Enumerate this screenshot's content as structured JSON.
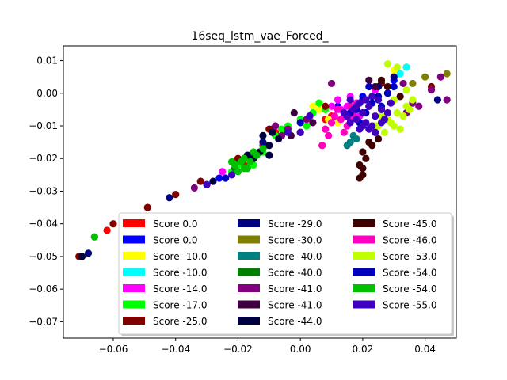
{
  "chart_data": {
    "type": "scatter",
    "title": "16seq_lstm_vae_Forced_",
    "xlabel": "",
    "ylabel": "",
    "xlim": [
      -0.076,
      0.05
    ],
    "ylim": [
      -0.075,
      0.0145
    ],
    "xticks": [
      -0.06,
      -0.04,
      -0.02,
      0.0,
      0.02,
      0.04
    ],
    "xtick_labels": [
      "−0.06",
      "−0.04",
      "−0.02",
      "0.00",
      "0.02",
      "0.04"
    ],
    "yticks": [
      0.01,
      0.0,
      -0.01,
      -0.02,
      -0.03,
      -0.04,
      -0.05,
      -0.06,
      -0.07
    ],
    "ytick_labels": [
      "0.01",
      "0.00",
      "−0.01",
      "−0.02",
      "−0.03",
      "−0.04",
      "−0.05",
      "−0.06",
      "−0.07"
    ],
    "grid": false,
    "legend_position": "lower-right",
    "legend_columns": 3,
    "series": [
      {
        "name": "Score 0.0",
        "color": "#ff0000",
        "points": [
          [
            -0.018,
            -0.022
          ],
          [
            -0.012,
            -0.016
          ],
          [
            0.008,
            -0.008
          ],
          [
            -0.062,
            -0.042
          ],
          [
            0.01,
            -0.007
          ],
          [
            -0.008,
            -0.012
          ]
        ]
      },
      {
        "name": "Score 0.0",
        "color": "#0000ff",
        "points": [
          [
            -0.016,
            -0.019
          ],
          [
            0.012,
            -0.004
          ],
          [
            -0.026,
            -0.026
          ],
          [
            0.03,
            0.004
          ],
          [
            -0.009,
            -0.011
          ],
          [
            0.02,
            -0.001
          ]
        ]
      },
      {
        "name": "Score -10.0",
        "color": "#ffff00",
        "points": [
          [
            0.006,
            -0.005
          ],
          [
            0.009,
            -0.008
          ],
          [
            0.004,
            -0.004
          ],
          [
            0.012,
            -0.009
          ],
          [
            0.03,
            0.007
          ],
          [
            0.034,
            0.008
          ]
        ]
      },
      {
        "name": "Score -10.0",
        "color": "#00ffff",
        "points": [
          [
            0.034,
            0.008
          ],
          [
            0.032,
            0.006
          ],
          [
            0.028,
            0.0
          ]
        ]
      },
      {
        "name": "Score -14.0",
        "color": "#ff00ff",
        "points": [
          [
            0.012,
            -0.002
          ],
          [
            0.015,
            -0.004
          ],
          [
            0.014,
            -0.007
          ],
          [
            0.018,
            -0.003
          ],
          [
            0.016,
            -0.008
          ],
          [
            0.02,
            -0.002
          ],
          [
            0.013,
            -0.005
          ],
          [
            0.017,
            -0.006
          ],
          [
            0.01,
            -0.004
          ],
          [
            0.019,
            -0.007
          ],
          [
            0.022,
            -0.004
          ],
          [
            0.007,
            -0.016
          ],
          [
            -0.025,
            -0.024
          ],
          [
            -0.018,
            -0.02
          ],
          [
            0.024,
            0.001
          ],
          [
            0.016,
            -0.001
          ]
        ]
      },
      {
        "name": "Score -17.0",
        "color": "#00ff00",
        "points": [
          [
            -0.02,
            -0.022
          ],
          [
            -0.017,
            -0.02
          ],
          [
            -0.014,
            -0.019
          ],
          [
            -0.011,
            -0.016
          ],
          [
            -0.008,
            -0.013
          ],
          [
            -0.004,
            -0.01
          ],
          [
            0.0,
            -0.008
          ],
          [
            0.004,
            -0.006
          ],
          [
            -0.022,
            -0.024
          ],
          [
            -0.015,
            -0.022
          ],
          [
            -0.012,
            -0.018
          ],
          [
            0.002,
            -0.01
          ],
          [
            0.006,
            -0.003
          ],
          [
            -0.066,
            -0.044
          ],
          [
            -0.006,
            -0.011
          ],
          [
            0.008,
            -0.005
          ]
        ]
      },
      {
        "name": "Score -25.0",
        "color": "#800000",
        "points": [
          [
            -0.071,
            -0.05
          ],
          [
            -0.049,
            -0.035
          ],
          [
            -0.04,
            -0.031
          ],
          [
            -0.032,
            -0.027
          ],
          [
            -0.01,
            -0.011
          ],
          [
            0.008,
            -0.004
          ],
          [
            0.026,
            0.003
          ],
          [
            0.042,
            0.002
          ],
          [
            -0.02,
            -0.02
          ],
          [
            -0.06,
            -0.04
          ]
        ]
      },
      {
        "name": "Score -29.0",
        "color": "#000080",
        "points": [
          [
            -0.068,
            -0.049
          ],
          [
            -0.03,
            -0.028
          ],
          [
            -0.012,
            -0.015
          ],
          [
            0.003,
            -0.007
          ],
          [
            0.03,
            0.005
          ],
          [
            0.044,
            -0.002
          ],
          [
            -0.042,
            -0.032
          ],
          [
            0.025,
            0.002
          ]
        ]
      },
      {
        "name": "Score -30.0",
        "color": "#808000",
        "points": [
          [
            0.047,
            0.006
          ],
          [
            0.04,
            0.005
          ],
          [
            0.036,
            0.003
          ]
        ]
      },
      {
        "name": "Score -40.0",
        "color": "#008080",
        "points": [
          [
            0.016,
            -0.015
          ],
          [
            0.015,
            -0.016
          ],
          [
            0.018,
            -0.014
          ],
          [
            0.017,
            -0.013
          ]
        ]
      },
      {
        "name": "Score -40.0",
        "color": "#008000",
        "points": [
          [
            -0.019,
            -0.021
          ],
          [
            -0.016,
            -0.019
          ],
          [
            -0.021,
            -0.023
          ],
          [
            -0.013,
            -0.018
          ],
          [
            -0.017,
            -0.023
          ],
          [
            -0.015,
            -0.02
          ]
        ]
      },
      {
        "name": "Score -41.0",
        "color": "#800080",
        "points": [
          [
            -0.006,
            -0.013
          ],
          [
            -0.008,
            -0.01
          ],
          [
            0.0,
            -0.012
          ],
          [
            0.045,
            0.005
          ],
          [
            0.047,
            -0.002
          ],
          [
            0.038,
            -0.004
          ],
          [
            0.034,
            -0.006
          ],
          [
            0.033,
            0.003
          ],
          [
            -0.004,
            -0.011
          ],
          [
            -0.034,
            -0.029
          ],
          [
            0.01,
            0.003
          ],
          [
            0.002,
            -0.008
          ],
          [
            0.036,
            -0.003
          ],
          [
            0.042,
            0.001
          ]
        ]
      },
      {
        "name": "Score -41.0",
        "color": "#400040",
        "points": [
          [
            0.004,
            -0.009
          ],
          [
            -0.003,
            -0.013
          ],
          [
            0.022,
            0.004
          ],
          [
            -0.002,
            -0.006
          ],
          [
            0.024,
            0.002
          ]
        ]
      },
      {
        "name": "Score -44.0",
        "color": "#000040",
        "points": [
          [
            -0.015,
            -0.02
          ],
          [
            -0.013,
            -0.018
          ],
          [
            -0.01,
            -0.016
          ],
          [
            -0.007,
            -0.014
          ],
          [
            -0.01,
            -0.019
          ],
          [
            -0.012,
            -0.013
          ],
          [
            -0.07,
            -0.05
          ],
          [
            -0.028,
            -0.027
          ],
          [
            -0.009,
            -0.012
          ],
          [
            -0.017,
            -0.019
          ]
        ]
      },
      {
        "name": "Score -45.0",
        "color": "#400000",
        "points": [
          [
            0.022,
            -0.015
          ],
          [
            0.02,
            -0.018
          ],
          [
            0.019,
            -0.022
          ],
          [
            0.02,
            -0.025
          ],
          [
            0.024,
            -0.012
          ],
          [
            0.025,
            -0.014
          ],
          [
            0.021,
            -0.02
          ],
          [
            0.019,
            -0.026
          ],
          [
            0.023,
            -0.016
          ],
          [
            0.02,
            -0.023
          ],
          [
            0.026,
            0.004
          ],
          [
            0.028,
            0.002
          ],
          [
            0.032,
            -0.001
          ]
        ]
      },
      {
        "name": "Score -46.0",
        "color": "#ff00c0",
        "points": [
          [
            0.012,
            -0.005
          ],
          [
            0.014,
            -0.006
          ],
          [
            0.011,
            -0.007
          ],
          [
            0.016,
            -0.004
          ],
          [
            0.013,
            -0.008
          ],
          [
            0.015,
            -0.01
          ],
          [
            0.017,
            -0.007
          ],
          [
            0.01,
            -0.009
          ],
          [
            0.008,
            -0.011
          ],
          [
            0.018,
            -0.003
          ],
          [
            0.009,
            -0.013
          ],
          [
            0.014,
            -0.012
          ],
          [
            0.007,
            -0.016
          ]
        ]
      },
      {
        "name": "Score -53.0",
        "color": "#c0ff00",
        "points": [
          [
            0.025,
            -0.01
          ],
          [
            0.028,
            -0.008
          ],
          [
            0.031,
            -0.006
          ],
          [
            0.034,
            -0.004
          ],
          [
            0.03,
            -0.01
          ],
          [
            0.027,
            -0.012
          ],
          [
            0.033,
            -0.007
          ],
          [
            0.036,
            -0.002
          ],
          [
            0.029,
            -0.009
          ],
          [
            0.032,
            -0.011
          ],
          [
            0.024,
            -0.01
          ],
          [
            0.035,
            -0.005
          ],
          [
            0.026,
            -0.007
          ],
          [
            0.03,
            -0.002
          ],
          [
            0.034,
            0.001
          ],
          [
            0.028,
            0.009
          ],
          [
            0.031,
            0.008
          ]
        ]
      },
      {
        "name": "Score -54.0",
        "color": "#0000c0",
        "points": [
          [
            0.02,
            -0.002
          ],
          [
            0.023,
            -0.003
          ],
          [
            0.018,
            -0.005
          ],
          [
            0.025,
            -0.001
          ],
          [
            0.021,
            -0.006
          ],
          [
            0.028,
            0.0
          ],
          [
            0.03,
            0.002
          ],
          [
            0.016,
            -0.006
          ],
          [
            -0.024,
            -0.026
          ],
          [
            -0.056,
            -0.04
          ],
          [
            0.0,
            -0.009
          ],
          [
            0.022,
            0.002
          ],
          [
            0.026,
            -0.004
          ],
          [
            0.019,
            -0.009
          ]
        ]
      },
      {
        "name": "Score -54.0",
        "color": "#00c000",
        "points": [
          [
            -0.019,
            -0.021
          ],
          [
            -0.017,
            -0.023
          ],
          [
            -0.021,
            -0.022
          ],
          [
            -0.016,
            -0.021
          ],
          [
            -0.015,
            -0.018
          ],
          [
            -0.018,
            -0.02
          ],
          [
            -0.02,
            -0.024
          ],
          [
            -0.014,
            -0.019
          ],
          [
            -0.022,
            -0.021
          ],
          [
            -0.012,
            -0.017
          ],
          [
            -0.066,
            -0.044
          ],
          [
            -0.018,
            -0.023
          ]
        ]
      },
      {
        "name": "Score -55.0",
        "color": "#4000c0",
        "points": [
          [
            0.02,
            -0.006
          ],
          [
            0.022,
            -0.004
          ],
          [
            0.024,
            -0.007
          ],
          [
            0.018,
            -0.008
          ],
          [
            0.026,
            -0.005
          ],
          [
            0.021,
            -0.009
          ],
          [
            0.019,
            -0.003
          ],
          [
            0.023,
            -0.01
          ],
          [
            0.017,
            -0.005
          ],
          [
            0.027,
            -0.008
          ],
          [
            0.016,
            -0.009
          ],
          [
            0.025,
            -0.002
          ],
          [
            0.022,
            -0.011
          ],
          [
            0.028,
            -0.006
          ],
          [
            0.02,
            -0.01
          ],
          [
            0.015,
            -0.007
          ],
          [
            0.019,
            -0.011
          ],
          [
            0.029,
            -0.003
          ],
          [
            0.014,
            -0.006
          ],
          [
            0.024,
            -0.012
          ],
          [
            0.026,
            -0.009
          ],
          [
            0.018,
            -0.004
          ],
          [
            0.023,
            -0.001
          ],
          [
            0.021,
            -0.002
          ],
          [
            -0.004,
            -0.012
          ],
          [
            0.0,
            -0.012
          ],
          [
            0.003,
            -0.007
          ],
          [
            -0.03,
            -0.028
          ],
          [
            -0.022,
            -0.025
          ],
          [
            0.016,
            -0.002
          ]
        ]
      }
    ]
  }
}
